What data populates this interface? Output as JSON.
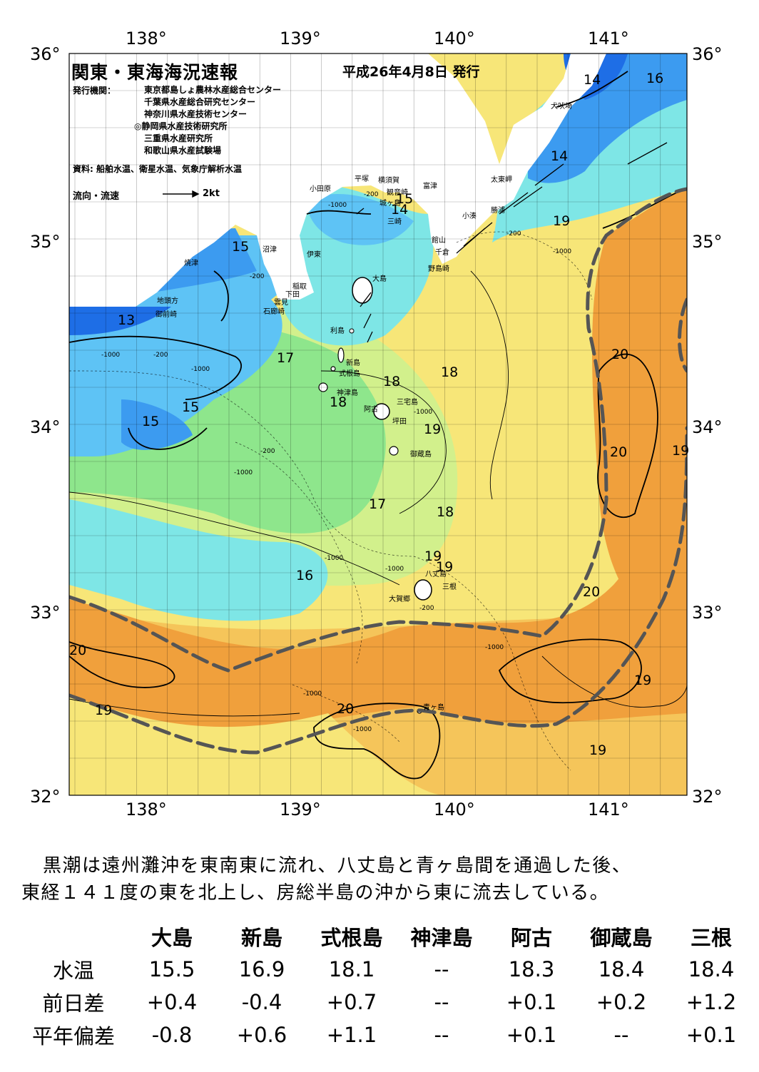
{
  "title": "関東・東海海況速報",
  "issue_date": "平成26年4月8日 発行",
  "issuer_label": "発行機関：",
  "issuers": [
    "東京都島しょ農林水産総合センター",
    "千葉県水産総合研究センター",
    "神奈川県水産技術センター",
    "◎静岡県水産技術研究所",
    "三重県水産研究所",
    "和歌山県水産試験場"
  ],
  "source": "資料: 船舶水温、衛星水温、気象庁解析水温",
  "flow_legend": {
    "label": "流向・流速",
    "scale": "2kt"
  },
  "axes": {
    "lon_ticks": [
      "138°",
      "139°",
      "140°",
      "141°"
    ],
    "lat_ticks": [
      "36°",
      "35°",
      "34°",
      "33°",
      "32°"
    ]
  },
  "place_names": {
    "inubosaki": "犬吠埼",
    "taitomisaki": "太東岬",
    "katsuura": "勝浦",
    "kominato": "小湊",
    "futtsu": "富津",
    "tateyama": "館山",
    "chikura": "千倉",
    "nojimazaki": "野島崎",
    "yokosuka": "横須賀",
    "kannonzaki": "観音崎",
    "hiratsuka": "平塚",
    "odawara": "小田原",
    "jogashima": "城ヶ島",
    "misaki": "三崎",
    "ito": "伊東",
    "numazu": "沼津",
    "yaizu": "焼津",
    "inatori": "稲取",
    "shimoda": "下田",
    "kumomi": "雲見",
    "irozaki": "石廊崎",
    "jitokata": "地頭方",
    "omaezaki": "御前崎",
    "oshima": "大島",
    "toshima": "利島",
    "niijima": "新島",
    "shikinejima": "式根島",
    "kozushima": "神津島",
    "ako": "阿古",
    "miyakejima": "三宅島",
    "tsubota": "坪田",
    "mikurajima": "御蔵島",
    "hachijojima": "八丈島",
    "mitsune": "三根",
    "okago": "大賀郷",
    "aogashima": "青ヶ島"
  },
  "isotherm_labels": [
    "13",
    "14",
    "14",
    "14",
    "15",
    "15",
    "15",
    "15",
    "16",
    "16",
    "17",
    "17",
    "18",
    "18",
    "18",
    "18",
    "19",
    "19",
    "19",
    "19",
    "19",
    "19",
    "19",
    "20",
    "20",
    "20",
    "20",
    "20"
  ],
  "depth_labels": [
    "-200",
    "-1000"
  ],
  "summary": [
    "黒潮は遠州灘沖を東南東に流れ、八丈島と青ヶ島間を通過した後、",
    "東経１４１度の東を北上し、房総半島の沖から東に流去している。"
  ],
  "table": {
    "columns": [
      "大島",
      "新島",
      "式根島",
      "神津島",
      "阿古",
      "御蔵島",
      "三根"
    ],
    "rows": [
      {
        "label": "水温",
        "values": [
          "15.5",
          "16.9",
          "18.1",
          "--",
          "18.3",
          "18.4",
          "18.4"
        ]
      },
      {
        "label": "前日差",
        "values": [
          "+0.4",
          "-0.4",
          "+0.7",
          "--",
          "+0.1",
          "+0.2",
          "+1.2"
        ]
      },
      {
        "label": "平年偏差",
        "values": [
          "-0.8",
          "+0.6",
          "+1.1",
          "--",
          "+0.1",
          "--",
          "+0.1"
        ]
      }
    ]
  },
  "colors": {
    "t13": "#1e6ee6",
    "t14": "#3c9bf0",
    "t15": "#5ec3f5",
    "t16": "#7ee6e6",
    "t17": "#8ee68c",
    "t18": "#d2f08c",
    "t19": "#f7e678",
    "t19b": "#f5c55a",
    "t20": "#f0a03c",
    "land": "#ffffff",
    "kuroshio": "#555555"
  }
}
